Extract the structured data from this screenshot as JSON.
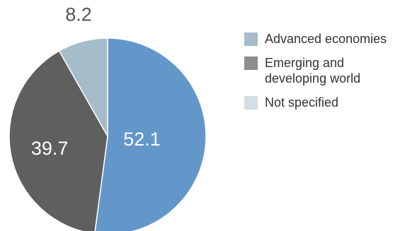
{
  "chart_data": {
    "type": "pie",
    "title": "",
    "categories": [
      "Emerging and developing world",
      "Advanced economies",
      "Not specified"
    ],
    "values": [
      52.1,
      8.2,
      39.7
    ],
    "data_labels": [
      "52.1",
      "8.2",
      "39.7"
    ],
    "slice_colors": [
      "#6397ca",
      "#a5bccb",
      "#5f5f5f"
    ],
    "legend": {
      "placement": "right",
      "entries": [
        {
          "label": "Advanced economies",
          "color": "#a5bccb"
        },
        {
          "label": "Emerging and developing world",
          "color": "#8d8d8d"
        },
        {
          "label": "Not specified",
          "color": "#d3dde4"
        }
      ]
    }
  }
}
